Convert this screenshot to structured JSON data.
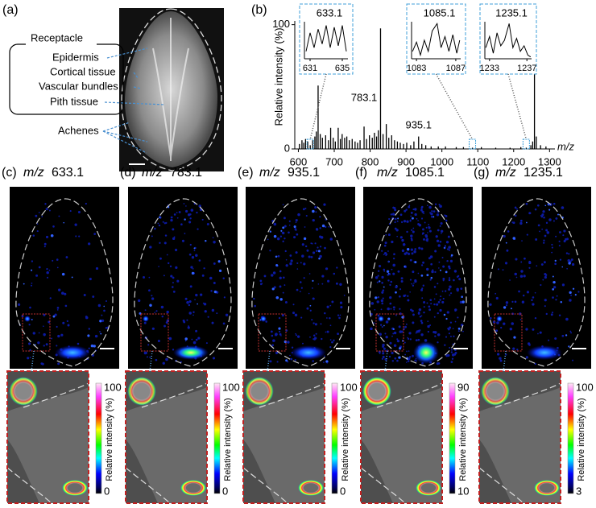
{
  "panel_a": {
    "label": "(a)",
    "group_label": "Receptacle",
    "tissues": [
      "Epidermis",
      "Cortical tissue",
      "Vascular bundles",
      "Pith tissue"
    ],
    "achenes": "Achenes"
  },
  "chart_data": [
    {
      "type": "stem",
      "label": "(b)",
      "ylabel": "Relative intensity (%)",
      "xlabel": "m/z",
      "color": "#000000",
      "x": [
        603,
        610,
        615,
        620,
        626,
        633.1,
        640,
        646,
        650,
        655,
        661,
        667,
        676,
        684,
        690,
        697,
        703,
        711,
        717,
        722,
        729,
        735,
        742,
        750,
        758,
        765,
        772,
        783.1,
        790,
        798,
        806,
        812,
        818,
        823,
        829,
        836,
        845,
        852,
        860,
        868,
        876,
        884,
        893,
        902,
        913,
        922,
        935.1,
        944,
        955,
        970,
        990,
        1010,
        1040,
        1060,
        1085.1,
        1110,
        1150,
        1190,
        1220,
        1235.1,
        1248,
        1253,
        1258,
        1263,
        1275,
        1290
      ],
      "values": [
        4,
        7,
        5,
        8,
        6,
        3,
        7,
        10,
        14,
        51,
        12,
        9,
        11,
        7,
        17,
        9,
        6,
        17,
        8,
        12,
        9,
        10,
        7,
        8,
        6,
        5,
        7,
        18,
        8,
        11,
        9,
        13,
        10,
        15,
        97,
        12,
        20,
        9,
        11,
        7,
        6,
        5,
        4,
        5,
        3,
        6,
        10,
        4,
        3,
        2,
        2,
        2,
        1.5,
        1.5,
        1,
        1.5,
        1,
        1,
        1.5,
        1,
        3,
        6,
        78,
        10,
        3,
        2
      ],
      "xlim": [
        590,
        1315
      ],
      "xticks": [
        600,
        700,
        800,
        900,
        1000,
        1100,
        1200,
        1300
      ],
      "ylim": [
        0,
        103
      ],
      "yticks": [
        0,
        100
      ],
      "peak_labels": [
        783.1,
        935.1
      ]
    },
    {
      "type": "line",
      "title": "633.1",
      "color": "#000000",
      "x": [
        630.5,
        631,
        631.5,
        632,
        632.5,
        633,
        633.5,
        634,
        634.5,
        635,
        635.5
      ],
      "values": [
        0.2,
        0.7,
        0.3,
        0.8,
        0.4,
        0.9,
        0.3,
        0.85,
        0.35,
        0.9,
        0.2
      ],
      "xlim": [
        630.3,
        635.7
      ],
      "xticks": [
        631,
        635
      ],
      "ylim": [
        0,
        1
      ]
    },
    {
      "type": "line",
      "title": "1085.1",
      "color": "#000000",
      "x": [
        1082.6,
        1083,
        1083.4,
        1083.8,
        1084.2,
        1084.6,
        1085.1,
        1085.5,
        1085.9,
        1086.3,
        1086.7,
        1087.1,
        1087.4
      ],
      "values": [
        0.2,
        0.45,
        0.1,
        0.5,
        0.2,
        0.75,
        0.95,
        0.3,
        0.6,
        0.2,
        0.65,
        0.15,
        0.5
      ],
      "xlim": [
        1082.5,
        1087.5
      ],
      "xticks": [
        1083,
        1087
      ],
      "ylim": [
        0,
        1
      ]
    },
    {
      "type": "line",
      "title": "1235.1",
      "color": "#000000",
      "x": [
        1232.6,
        1233,
        1233.4,
        1233.8,
        1234.2,
        1234.6,
        1235.1,
        1235.5,
        1235.9,
        1236.3,
        1236.7,
        1237.1,
        1237.4
      ],
      "values": [
        0.3,
        0.6,
        0.15,
        0.7,
        0.35,
        0.5,
        0.95,
        0.3,
        0.55,
        0.2,
        0.35,
        0.1,
        0.05
      ],
      "xlim": [
        1232.5,
        1237.5
      ],
      "xticks": [
        1233,
        1237
      ],
      "ylim": [
        0,
        1
      ]
    }
  ],
  "images": [
    {
      "label": "(c)",
      "mz_prefix": "m/z",
      "mz": "633.1",
      "colorbar": {
        "max": 100,
        "min": 0,
        "label": "Relative intensity (%)"
      }
    },
    {
      "label": "(d)",
      "mz_prefix": "m/z",
      "mz": "783.1",
      "colorbar": {
        "max": 100,
        "min": 0,
        "label": "Relative intensity (%)"
      }
    },
    {
      "label": "(e)",
      "mz_prefix": "m/z",
      "mz": "935.1",
      "colorbar": {
        "max": 100,
        "min": 0,
        "label": "Relative intensity (%)"
      }
    },
    {
      "label": "(f)",
      "mz_prefix": "m/z",
      "mz": "1085.1",
      "colorbar": {
        "max": 90,
        "min": 10,
        "label": "Relative intensity (%)"
      }
    },
    {
      "label": "(g)",
      "mz_prefix": "m/z",
      "mz": "1235.1",
      "colorbar": {
        "max": 100,
        "min": 3,
        "label": "Relative intensity (%)"
      }
    }
  ]
}
